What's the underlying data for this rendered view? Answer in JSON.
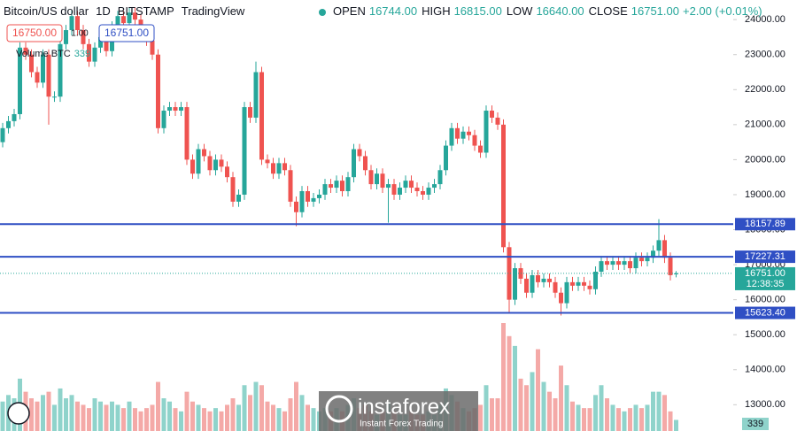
{
  "header": {
    "symbol": "Bitcoin/US dollar",
    "interval": "1D",
    "exchange": "BITSTAMP",
    "source": "TradingView",
    "ohlc": [
      {
        "name": "OPEN",
        "value": 16744,
        "label": "16744.00"
      },
      {
        "name": "HIGH",
        "value": 16815,
        "label": "16815.00"
      },
      {
        "name": "LOW",
        "value": 16640,
        "label": "16640.00"
      },
      {
        "name": "CLOSE",
        "value": 16751,
        "label": "16751.00"
      }
    ],
    "change": "+2.00 (+0.01%)",
    "bid": "16750.00",
    "spread": "1.00",
    "ask": "16751.00"
  },
  "watermark": {
    "brand": "instaforex",
    "tagline": "Instant Forex Trading"
  },
  "chart_data": {
    "type": "candlestick",
    "open": [
      20500,
      20900,
      21100,
      21300,
      23200,
      23000,
      22500,
      22200,
      23000,
      21800,
      21800,
      23300,
      23700,
      24100,
      23700,
      23300,
      22800,
      23200,
      23500,
      23100,
      23800,
      24100,
      23900,
      24200,
      24000,
      23700,
      23400,
      23000,
      20900,
      21400,
      21500,
      21400,
      21500,
      20000,
      19600,
      20300,
      20100,
      19700,
      20000,
      19800,
      19500,
      18800,
      19000,
      21500,
      21200,
      22500,
      20000,
      19900,
      19600,
      19900,
      19700,
      18800,
      18500,
      19100,
      18800,
      18900,
      19000,
      19300,
      19200,
      19400,
      19100,
      19500,
      20300,
      20100,
      19700,
      19300,
      19600,
      19200,
      19300,
      19000,
      19200,
      19400,
      19200,
      19100,
      19000,
      19200,
      19300,
      19700,
      20400,
      20900,
      20600,
      20800,
      20700,
      20400,
      20200,
      21400,
      21200,
      21000,
      17500,
      16000,
      16900,
      16600,
      16200,
      16700,
      16500,
      16600,
      16500,
      16200,
      15900,
      16500,
      16400,
      16500,
      16400,
      16300,
      16800,
      17100,
      17000,
      17100,
      17000,
      17100,
      16900,
      17200,
      17100,
      17200,
      17400,
      17700,
      17200,
      16744
    ],
    "high": [
      21050,
      21250,
      21450,
      23350,
      23350,
      23150,
      22650,
      23150,
      23150,
      21950,
      23450,
      23850,
      24250,
      24250,
      23850,
      23450,
      23350,
      23650,
      23650,
      23950,
      24250,
      24250,
      24350,
      24350,
      24150,
      23850,
      23550,
      23150,
      21550,
      21650,
      21650,
      21650,
      21650,
      20150,
      20450,
      20450,
      20250,
      20150,
      20150,
      19950,
      19650,
      19150,
      21650,
      21650,
      22800,
      22650,
      20150,
      20050,
      20050,
      20050,
      19850,
      18950,
      19250,
      19250,
      19050,
      19150,
      19450,
      19450,
      19550,
      19550,
      19650,
      20450,
      20450,
      20250,
      19850,
      19750,
      19750,
      19450,
      19450,
      19350,
      19550,
      19550,
      19350,
      19250,
      19350,
      19450,
      19850,
      20550,
      21050,
      21050,
      20950,
      20950,
      20850,
      20550,
      21550,
      21550,
      21350,
      21150,
      17650,
      17050,
      17050,
      16750,
      16850,
      16850,
      16750,
      16750,
      16650,
      16350,
      16650,
      16650,
      16650,
      16650,
      16550,
      16950,
      17250,
      17250,
      17250,
      17250,
      17250,
      17250,
      17350,
      17350,
      17350,
      17550,
      18300,
      17850,
      17350,
      16815
    ],
    "low": [
      20350,
      20750,
      20950,
      21150,
      22850,
      22350,
      22050,
      22050,
      21000,
      21650,
      21650,
      23150,
      23550,
      23550,
      23150,
      22650,
      22650,
      23050,
      22950,
      22950,
      23650,
      23750,
      23750,
      23850,
      23550,
      23250,
      22850,
      20750,
      20750,
      21250,
      21250,
      21250,
      19850,
      19450,
      19450,
      19950,
      19550,
      19550,
      19650,
      19350,
      18650,
      18650,
      18850,
      21050,
      21050,
      19850,
      19750,
      19450,
      19450,
      19550,
      18650,
      18100,
      18350,
      18650,
      18650,
      18750,
      18850,
      19050,
      19050,
      18950,
      18950,
      19350,
      19950,
      19550,
      19150,
      19150,
      19050,
      18200,
      18850,
      18850,
      19050,
      19050,
      18950,
      18850,
      18850,
      19050,
      19150,
      19550,
      20250,
      20450,
      20450,
      20550,
      20250,
      20050,
      20050,
      21050,
      20850,
      17350,
      15600,
      15850,
      16450,
      16050,
      16050,
      16350,
      16350,
      16350,
      16050,
      15550,
      15750,
      16250,
      16250,
      16250,
      16150,
      16150,
      16650,
      16850,
      16850,
      16850,
      16850,
      16750,
      16750,
      16950,
      16950,
      17050,
      17250,
      17050,
      16550,
      16640
    ],
    "close": [
      20900,
      21100,
      21300,
      23200,
      23000,
      22500,
      22200,
      23000,
      21800,
      21800,
      23300,
      23700,
      24100,
      23700,
      23300,
      22800,
      23200,
      23500,
      23100,
      23800,
      24100,
      23900,
      24200,
      24000,
      23700,
      23400,
      23000,
      20900,
      21400,
      21500,
      21400,
      21500,
      20000,
      19600,
      20300,
      20100,
      19700,
      20000,
      19800,
      19500,
      18800,
      19000,
      21500,
      21200,
      22500,
      20000,
      19900,
      19600,
      19900,
      19700,
      18800,
      18500,
      19100,
      18800,
      18900,
      19000,
      19300,
      19200,
      19400,
      19100,
      19500,
      20300,
      20100,
      19700,
      19300,
      19600,
      19200,
      19300,
      19000,
      19200,
      19400,
      19200,
      19100,
      19000,
      19200,
      19300,
      19700,
      20400,
      20900,
      20600,
      20800,
      20700,
      20400,
      20200,
      21400,
      21200,
      21000,
      17500,
      16000,
      16900,
      16600,
      16200,
      16700,
      16500,
      16600,
      16500,
      16200,
      15900,
      16500,
      16400,
      16500,
      16400,
      16300,
      16800,
      17100,
      17000,
      17100,
      17000,
      17100,
      16900,
      17200,
      17100,
      17200,
      17400,
      17700,
      17200,
      16700,
      16751
    ],
    "volume_label": "Volume BTC",
    "volume": [
      900,
      1100,
      1000,
      1600,
      1200,
      1000,
      900,
      1100,
      1200,
      800,
      1300,
      1000,
      1100,
      900,
      800,
      700,
      1000,
      900,
      800,
      900,
      800,
      700,
      900,
      700,
      600,
      700,
      800,
      1500,
      1000,
      900,
      700,
      600,
      1200,
      900,
      800,
      700,
      600,
      700,
      600,
      800,
      1000,
      800,
      1400,
      1100,
      1500,
      1400,
      900,
      800,
      700,
      600,
      1000,
      1500,
      1100,
      800,
      700,
      600,
      700,
      600,
      700,
      600,
      800,
      1000,
      700,
      800,
      600,
      500,
      600,
      900,
      600,
      500,
      500,
      600,
      500,
      500,
      600,
      500,
      800,
      1300,
      1100,
      900,
      700,
      600,
      700,
      800,
      1400,
      1000,
      1000,
      3300,
      2900,
      2600,
      1600,
      1400,
      1800,
      2500,
      1500,
      1200,
      1000,
      2000,
      1400,
      900,
      800,
      700,
      700,
      1100,
      1400,
      1000,
      800,
      700,
      600,
      700,
      800,
      700,
      800,
      1200,
      1200,
      1100,
      600,
      339
    ],
    "up_color": "#26a69a",
    "down_color": "#ef5350",
    "up_volume_color": "#8fd3cb",
    "down_volume_color": "#f4a9a7",
    "level_color": "#2f4fc4",
    "ylim": [
      12250,
      24560
    ],
    "yticks": [
      {
        "value": 13000,
        "label": "13000.00"
      },
      {
        "value": 14000,
        "label": "14000.00"
      },
      {
        "value": 15000,
        "label": "15000.00"
      },
      {
        "value": 16000,
        "label": "16000.00"
      },
      {
        "value": 17000,
        "label": "17000.00"
      },
      {
        "value": 18000,
        "label": "18000.00"
      },
      {
        "value": 19000,
        "label": "19000.00"
      },
      {
        "value": 20000,
        "label": "20000.00"
      },
      {
        "value": 21000,
        "label": "21000.00"
      },
      {
        "value": 22000,
        "label": "22000.00"
      },
      {
        "value": 23000,
        "label": "23000.00"
      },
      {
        "value": 24000,
        "label": "24000.00"
      }
    ],
    "levels": [
      {
        "value": 18157.89,
        "label": "18157.89"
      },
      {
        "value": 17227.31,
        "label": "17227.31"
      },
      {
        "value": 15623.4,
        "label": "15623.40"
      }
    ],
    "last_price": {
      "value": 16751,
      "label": "16751.00"
    },
    "countdown": "12:38:35"
  }
}
